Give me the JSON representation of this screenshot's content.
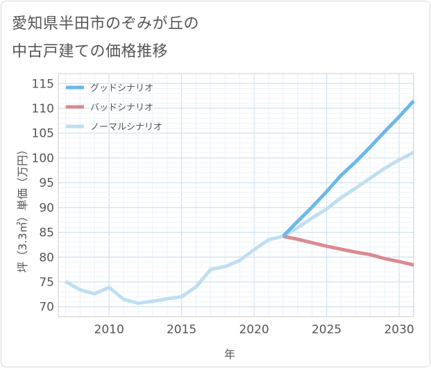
{
  "title_line1": "愛知県半田市のぞみが丘の",
  "title_line2": "中古戸建ての価格推移",
  "chart_data": {
    "type": "line",
    "xlabel": "年",
    "ylabel": "坪（3.3㎡）単価（万円）",
    "xlim": [
      2006.5,
      2031
    ],
    "ylim": [
      68,
      117
    ],
    "x_ticks": [
      2010,
      2015,
      2020,
      2025,
      2030
    ],
    "y_ticks": [
      70,
      75,
      80,
      85,
      90,
      95,
      100,
      105,
      110,
      115
    ],
    "grid": true,
    "legend_position": "top-left",
    "series": [
      {
        "name": "グッドシナリオ",
        "color": "#6cb7ea",
        "x": [
          2022,
          2023,
          2024,
          2025,
          2026,
          2027,
          2028,
          2029,
          2030,
          2031
        ],
        "y": [
          84.2,
          87.2,
          90.1,
          93.2,
          96.5,
          99.2,
          102.2,
          105.3,
          108.3,
          111.5
        ]
      },
      {
        "name": "バッドシナリオ",
        "color": "#db8a92",
        "x": [
          2022,
          2023,
          2024,
          2025,
          2026,
          2027,
          2028,
          2029,
          2030,
          2031
        ],
        "y": [
          84.2,
          83.6,
          82.9,
          82.2,
          81.6,
          81.0,
          80.5,
          79.7,
          79.1,
          78.4
        ]
      },
      {
        "name": "ノーマルシナリオ",
        "color": "#bfdff0",
        "x": [
          2007,
          2008,
          2009,
          2010,
          2011,
          2012,
          2013,
          2014,
          2015,
          2016,
          2017,
          2018,
          2019,
          2020,
          2021,
          2022,
          2023,
          2024,
          2025,
          2026,
          2027,
          2028,
          2029,
          2030,
          2031
        ],
        "y": [
          75.1,
          73.4,
          72.6,
          73.9,
          71.5,
          70.7,
          71.1,
          71.6,
          72.0,
          74.0,
          77.5,
          78.1,
          79.3,
          81.5,
          83.5,
          84.2,
          85.9,
          87.9,
          89.7,
          92.0,
          93.9,
          95.9,
          97.9,
          99.6,
          101.1
        ]
      }
    ]
  }
}
